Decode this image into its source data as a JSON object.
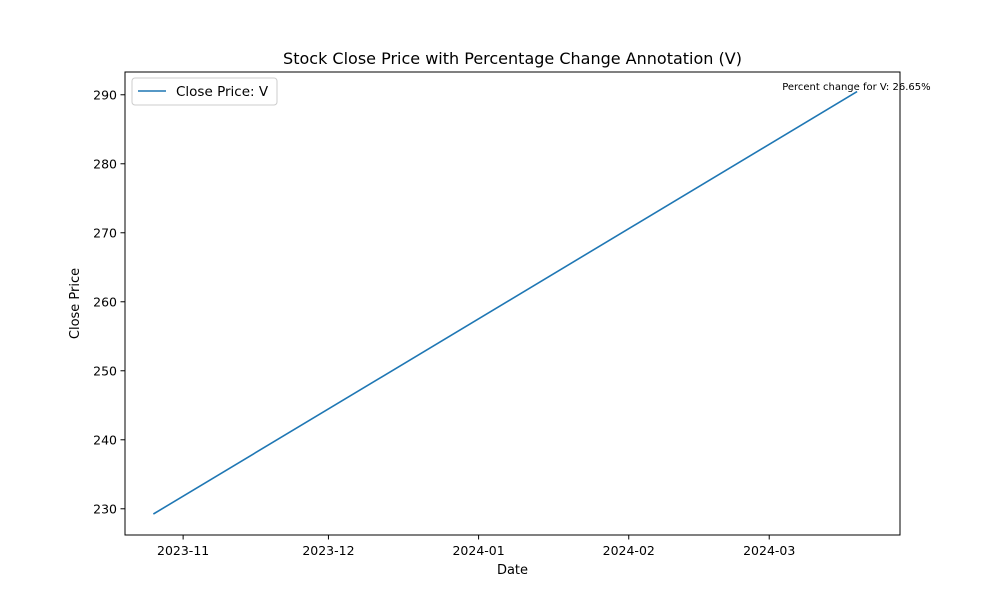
{
  "chart_data": {
    "type": "line",
    "title": "Stock Close Price with Percentage Change Annotation (V)",
    "xlabel": "Date",
    "ylabel": "Close Price",
    "x_ticks": [
      "2023-11",
      "2023-12",
      "2024-01",
      "2024-02",
      "2024-03"
    ],
    "x_tick_dates": [
      "2023-11-01",
      "2023-12-01",
      "2024-01-01",
      "2024-02-01",
      "2024-03-01"
    ],
    "y_ticks": [
      230,
      240,
      250,
      260,
      270,
      280,
      290
    ],
    "xlim": [
      "2023-10-20",
      "2024-03-28"
    ],
    "ylim": [
      226.2,
      293.3
    ],
    "grid": false,
    "legend_position": "top-left",
    "series": [
      {
        "name": "Close Price: V",
        "color": "#1f77b4",
        "x": [
          "2023-10-26",
          "2024-03-19"
        ],
        "y": [
          229.3,
          290.4
        ]
      }
    ],
    "annotations": [
      {
        "text": "Percent change for V: 26.65%",
        "x": "2024-03-19",
        "y": 290.4
      }
    ]
  }
}
